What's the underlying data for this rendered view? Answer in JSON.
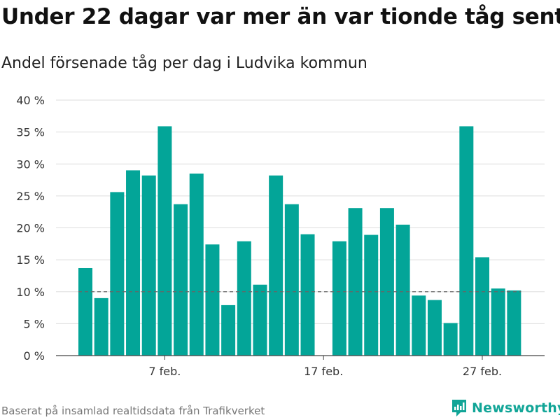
{
  "title": "Under 22 dagar var mer än var tionde tåg sent",
  "subtitle": "Andel försenade tåg per dag i Ludvika kommun",
  "footer": "Baserat på insamlad realtidsdata från Trafikverket",
  "brand": "Newsworthy",
  "colors": {
    "bar": "#03a598",
    "reference_line": "#666666",
    "brand": "#11a597"
  },
  "chart_data": {
    "type": "bar",
    "x": [
      "2 feb.",
      "3 feb.",
      "4 feb.",
      "5 feb.",
      "6 feb.",
      "7 feb.",
      "8 feb.",
      "9 feb.",
      "10 feb.",
      "11 feb.",
      "12 feb.",
      "13 feb.",
      "14 feb.",
      "15 feb.",
      "16 feb.",
      "17 feb.",
      "18 feb.",
      "19 feb.",
      "20 feb.",
      "21 feb.",
      "22 feb.",
      "23 feb.",
      "24 feb.",
      "25 feb.",
      "26 feb.",
      "27 feb.",
      "28 feb.",
      "29 feb."
    ],
    "values": [
      13.7,
      9.0,
      25.6,
      29.0,
      28.2,
      35.9,
      23.7,
      28.5,
      17.4,
      7.9,
      17.9,
      11.1,
      28.2,
      23.7,
      19.0,
      null,
      17.9,
      23.1,
      18.9,
      23.1,
      20.5,
      9.4,
      8.7,
      5.1,
      35.9,
      15.4,
      10.5,
      10.2
    ],
    "reference_line": 10,
    "ylim": [
      0,
      40
    ],
    "yticks": [
      0,
      5,
      10,
      15,
      20,
      25,
      30,
      35,
      40
    ],
    "ytick_suffix": " %",
    "xticks": [
      {
        "x": "7 feb.",
        "label": "7 feb."
      },
      {
        "x": "17 feb.",
        "label": "17 feb."
      },
      {
        "x": "27 feb.",
        "label": "27 feb."
      }
    ],
    "grid": true
  }
}
